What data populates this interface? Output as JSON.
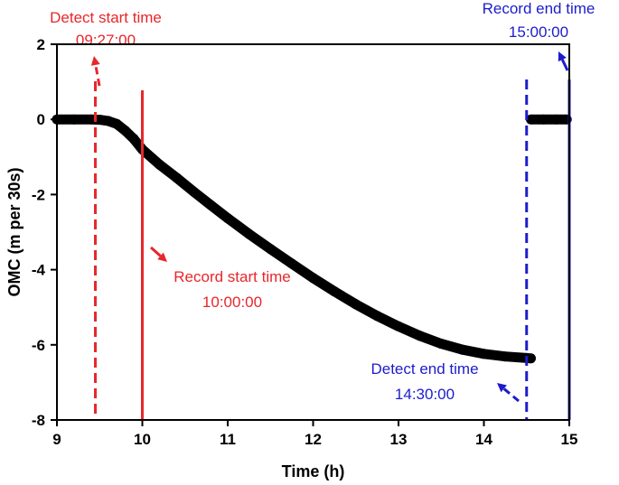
{
  "chart_data": {
    "type": "line",
    "xlabel": "Time (h)",
    "ylabel": "OMC (m per 30s)",
    "xlim": [
      9,
      15
    ],
    "ylim": [
      -8,
      2
    ],
    "x_ticks": [
      "9",
      "10",
      "11",
      "12",
      "13",
      "14",
      "15"
    ],
    "y_ticks": [
      "2",
      "0",
      "-2",
      "-4",
      "-6",
      "-8"
    ],
    "grid": false,
    "legend": "none",
    "series": [
      {
        "color": "#000000",
        "segments": [
          {
            "x": [
              9.0,
              9.2,
              9.4,
              9.5,
              9.6,
              9.7,
              9.8,
              9.9,
              10.0,
              10.2,
              10.4,
              10.6,
              10.8,
              11.0,
              11.25,
              11.5,
              11.75,
              12.0,
              12.25,
              12.5,
              12.75,
              13.0,
              13.25,
              13.5,
              13.75,
              14.0,
              14.25,
              14.5,
              14.55
            ],
            "y": [
              0.0,
              0.0,
              0.0,
              -0.01,
              -0.04,
              -0.12,
              -0.3,
              -0.52,
              -0.8,
              -1.2,
              -1.55,
              -1.92,
              -2.28,
              -2.63,
              -3.05,
              -3.45,
              -3.84,
              -4.22,
              -4.58,
              -4.92,
              -5.23,
              -5.51,
              -5.76,
              -5.97,
              -6.13,
              -6.24,
              -6.31,
              -6.35,
              -6.36
            ]
          },
          {
            "x": [
              14.55,
              14.7,
              14.85,
              14.97
            ],
            "y": [
              0.0,
              0.0,
              0.0,
              0.0
            ]
          }
        ]
      }
    ],
    "annotations": [
      {
        "id": "detect-start",
        "label": "Detect start time",
        "time": "09:27:00",
        "x": 9.45,
        "style": "dashed",
        "color": "#e8262b"
      },
      {
        "id": "record-start",
        "label": "Record start time",
        "time": "10:00:00",
        "x": 10.0,
        "style": "solid",
        "color": "#e8262b"
      },
      {
        "id": "detect-end",
        "label": "Detect end time",
        "time": "14:30:00",
        "x": 14.5,
        "style": "dashed",
        "color": "#1c1ccc"
      },
      {
        "id": "record-end",
        "label": "Record end time",
        "time": "15:00:00",
        "x": 15.0,
        "style": "solid",
        "color": "#1c1ccc"
      }
    ]
  }
}
